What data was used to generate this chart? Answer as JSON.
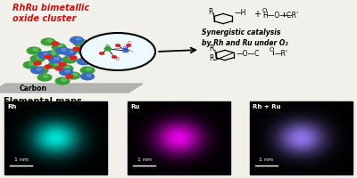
{
  "background_color": "#f2f0eb",
  "title_text": "RhRu bimetallic\noxide cluster",
  "title_color": "#cc1111",
  "carbon_label": "Carbon",
  "elemental_maps_label": "Elemental maps",
  "panel_labels": [
    "Rh",
    "Ru",
    "Rh + Ru"
  ],
  "scale_bar_text": "1 nm",
  "synergy_text": "Synergistic catalysis\nby Rh and Ru under O₂",
  "sphere_green": "#3a9e3a",
  "sphere_blue": "#3a6bbf",
  "sphere_red": "#dd2020",
  "carbon_gray": "#aaaaaa",
  "rh_color": "#00ddcc",
  "ru_color": "#dd00dd",
  "both_color": "#8855cc"
}
